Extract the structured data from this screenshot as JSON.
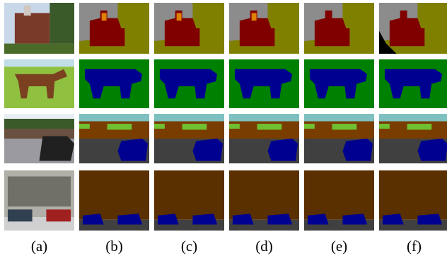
{
  "columns": [
    {
      "label": "(a)"
    },
    {
      "label": "(b)"
    },
    {
      "label": "(c)"
    },
    {
      "label": "(d)"
    },
    {
      "label": "(e)"
    },
    {
      "label": "(f)"
    }
  ]
}
